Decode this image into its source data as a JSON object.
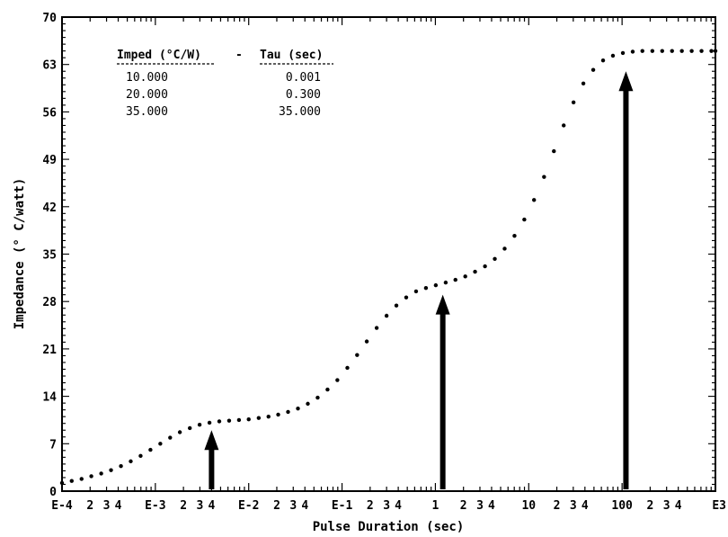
{
  "chart_data": {
    "type": "scatter",
    "title": "",
    "xlabel": "Pulse Duration (sec)",
    "ylabel": "Impedance (° C/watt)",
    "xscale": "log",
    "xlim": [
      0.0001,
      1000
    ],
    "ylim": [
      0,
      70
    ],
    "y_ticks": [
      "0",
      "7",
      "14",
      "21",
      "28",
      "35",
      "42",
      "49",
      "56",
      "63",
      "70"
    ],
    "x_tick_labels": [
      {
        "x": 0.0001,
        "label": "E-4"
      },
      {
        "x": 0.0002,
        "label": "2"
      },
      {
        "x": 0.0003,
        "label": "3"
      },
      {
        "x": 0.0004,
        "label": "4"
      },
      {
        "x": 0.001,
        "label": "E-3"
      },
      {
        "x": 0.002,
        "label": "2"
      },
      {
        "x": 0.003,
        "label": "3"
      },
      {
        "x": 0.004,
        "label": "4"
      },
      {
        "x": 0.01,
        "label": "E-2"
      },
      {
        "x": 0.02,
        "label": "2"
      },
      {
        "x": 0.03,
        "label": "3"
      },
      {
        "x": 0.04,
        "label": "4"
      },
      {
        "x": 0.1,
        "label": "E-1"
      },
      {
        "x": 0.2,
        "label": "2"
      },
      {
        "x": 0.3,
        "label": "3"
      },
      {
        "x": 0.4,
        "label": "4"
      },
      {
        "x": 1,
        "label": "1"
      },
      {
        "x": 2,
        "label": "2"
      },
      {
        "x": 3,
        "label": "3"
      },
      {
        "x": 4,
        "label": "4"
      },
      {
        "x": 10,
        "label": "10"
      },
      {
        "x": 20,
        "label": "2"
      },
      {
        "x": 30,
        "label": "3"
      },
      {
        "x": 40,
        "label": "4"
      },
      {
        "x": 100,
        "label": "100"
      },
      {
        "x": 200,
        "label": "2"
      },
      {
        "x": 300,
        "label": "3"
      },
      {
        "x": 400,
        "label": "4"
      },
      {
        "x": 1000,
        "label": "E3"
      }
    ],
    "legend_table": {
      "headers": [
        "Imped (°C/W)",
        "-",
        "Tau (sec)"
      ],
      "rows": [
        [
          "10.000",
          "0.001"
        ],
        [
          "20.000",
          "0.300"
        ],
        [
          "35.000",
          "35.000"
        ]
      ]
    },
    "series": [
      {
        "x": [
          0.0001,
          0.000127,
          0.000162,
          0.000206,
          0.000263,
          0.000335,
          0.000428,
          0.000545,
          0.000695,
          0.000886,
          0.00113,
          0.00144,
          0.00183,
          0.00234,
          0.00298,
          0.0038,
          0.00484,
          0.00617,
          0.00787,
          0.01,
          0.0128,
          0.0163,
          0.0207,
          0.0264,
          0.0337,
          0.043,
          0.0548,
          0.0699,
          0.0891,
          0.114,
          0.145,
          0.184,
          0.235,
          0.3,
          0.382,
          0.487,
          0.621,
          0.792,
          1.01,
          1.29,
          1.64,
          2.09,
          2.66,
          3.4,
          4.33,
          5.52,
          7.04,
          8.97,
          11.4,
          14.6,
          18.6,
          23.7,
          30.2,
          38.5,
          49.1,
          62.6,
          79.8,
          102,
          130,
          165,
          211,
          269,
          343,
          437,
          557,
          710,
          906,
          1000
        ],
        "y": [
          1.2,
          1.5,
          1.8,
          2.2,
          2.6,
          3.1,
          3.7,
          4.4,
          5.2,
          6.1,
          7.0,
          7.9,
          8.7,
          9.3,
          9.8,
          10.1,
          10.3,
          10.4,
          10.5,
          10.6,
          10.8,
          11.0,
          11.3,
          11.7,
          12.2,
          12.9,
          13.8,
          15.0,
          16.4,
          18.2,
          20.1,
          22.1,
          24.1,
          25.9,
          27.4,
          28.6,
          29.5,
          30.0,
          30.4,
          30.8,
          31.2,
          31.7,
          32.4,
          33.2,
          34.3,
          35.8,
          37.7,
          40.1,
          43.0,
          46.4,
          50.2,
          54.0,
          57.4,
          60.2,
          62.2,
          63.6,
          64.3,
          64.7,
          64.9,
          65.0,
          65.0,
          65.0,
          65.0,
          65.0,
          65.0,
          65.0,
          65.0,
          65.0
        ]
      }
    ],
    "arrows": [
      {
        "x": 0.004,
        "y_from": 0,
        "y_to": 9
      },
      {
        "x": 1.2,
        "y_from": 0,
        "y_to": 29
      },
      {
        "x": 110,
        "y_from": 0,
        "y_to": 62
      }
    ]
  }
}
